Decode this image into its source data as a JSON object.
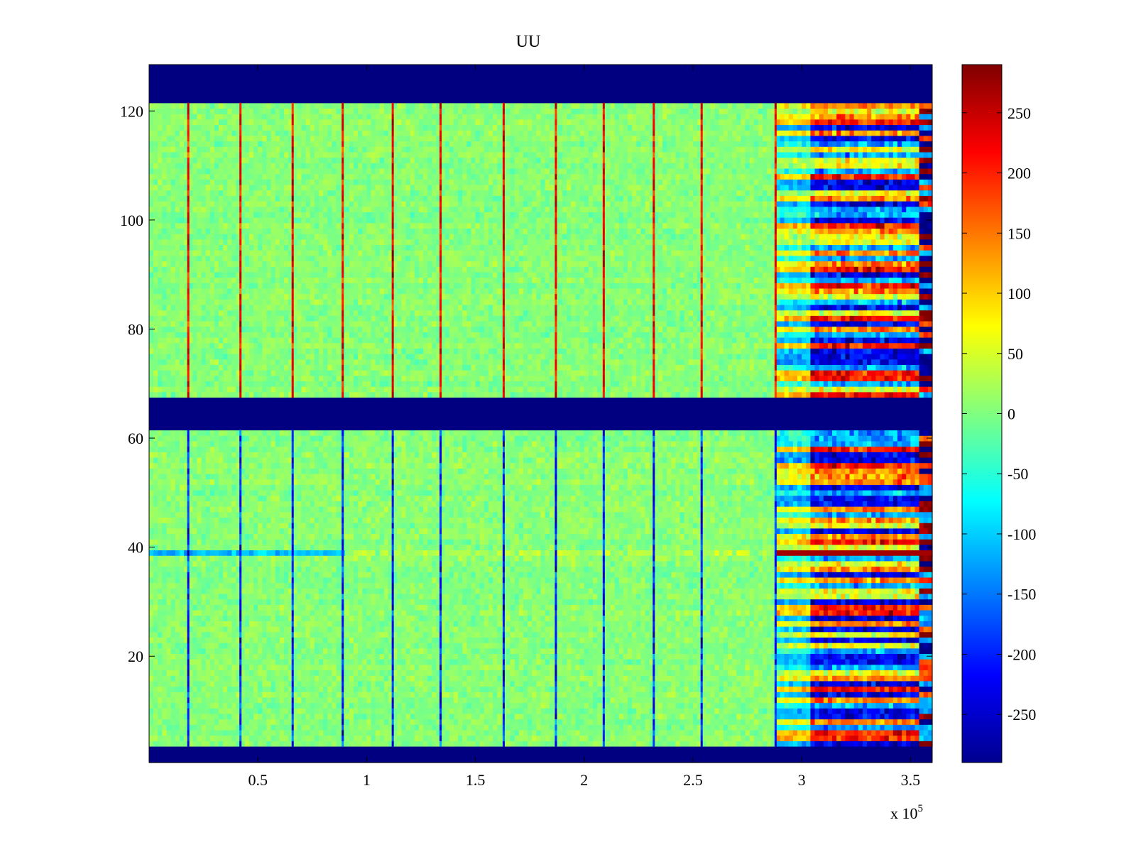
{
  "chart_data": {
    "type": "heatmap",
    "title": "UU",
    "xlabel": "",
    "ylabel": "",
    "x_multiplier": "x 10",
    "x_exponent": "5",
    "xlim": [
      0,
      3.6
    ],
    "ylim": [
      0.5,
      128.5
    ],
    "clim": [
      -290,
      290
    ],
    "colormap": "jet",
    "x_ticks": [
      {
        "value": 0.5,
        "label": "0.5"
      },
      {
        "value": 1,
        "label": "1"
      },
      {
        "value": 1.5,
        "label": "1.5"
      },
      {
        "value": 2,
        "label": "2"
      },
      {
        "value": 2.5,
        "label": "2.5"
      },
      {
        "value": 3,
        "label": "3"
      },
      {
        "value": 3.5,
        "label": "3.5"
      }
    ],
    "y_ticks": [
      {
        "value": 20,
        "label": "20"
      },
      {
        "value": 40,
        "label": "40"
      },
      {
        "value": 60,
        "label": "60"
      },
      {
        "value": 80,
        "label": "80"
      },
      {
        "value": 100,
        "label": "100"
      },
      {
        "value": 120,
        "label": "120"
      }
    ],
    "colorbar_ticks": [
      {
        "value": 250,
        "label": "250"
      },
      {
        "value": 200,
        "label": "200"
      },
      {
        "value": 150,
        "label": "150"
      },
      {
        "value": 100,
        "label": "100"
      },
      {
        "value": 50,
        "label": "50"
      },
      {
        "value": 0,
        "label": "0"
      },
      {
        "value": -50,
        "label": "-50"
      },
      {
        "value": -100,
        "label": "-100"
      },
      {
        "value": -150,
        "label": "-150"
      },
      {
        "value": -200,
        "label": "-200"
      },
      {
        "value": -250,
        "label": "-250"
      }
    ],
    "saturated_low_rows": [
      [
        0.5,
        3.5
      ],
      [
        61.5,
        67.5
      ],
      [
        121.5,
        128.5
      ]
    ],
    "periodic_spike_x": [
      0.18,
      0.42,
      0.66,
      0.89,
      1.12,
      1.34,
      1.63,
      1.87,
      2.09,
      2.32,
      2.54,
      2.88
    ],
    "noisy_region_x": [
      2.88,
      3.54
    ],
    "edge_region_x": [
      3.54,
      3.6
    ],
    "anomalous_channel_y": 39
  }
}
